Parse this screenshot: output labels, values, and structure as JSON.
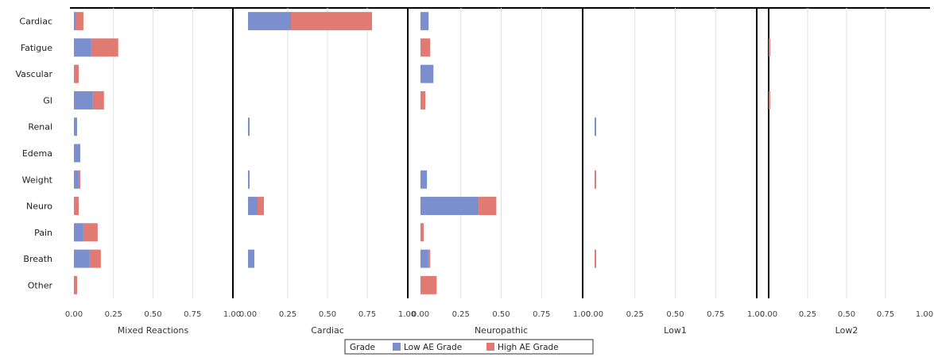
{
  "chart_data": {
    "type": "bar",
    "orientation": "horizontal",
    "stacked": true,
    "categories": [
      "Cardiac",
      "Fatigue",
      "Vascular",
      "GI",
      "Renal",
      "Edema",
      "Weight",
      "Neuro",
      "Pain",
      "Breath",
      "Other"
    ],
    "panels": [
      {
        "title": "Mixed Reactions",
        "xlim": [
          0,
          1
        ],
        "series": [
          {
            "name": "Low AE Grade",
            "values": [
              0.01,
              0.11,
              0.0,
              0.12,
              0.02,
              0.04,
              0.03,
              0.0,
              0.06,
              0.1,
              0.0
            ]
          },
          {
            "name": "High AE Grade",
            "values": [
              0.05,
              0.17,
              0.03,
              0.07,
              0.0,
              0.0,
              0.01,
              0.03,
              0.09,
              0.07,
              0.02
            ]
          }
        ]
      },
      {
        "title": "Cardiac",
        "xlim": [
          0,
          1
        ],
        "series": [
          {
            "name": "Low AE Grade",
            "values": [
              0.27,
              0,
              0,
              0,
              0.01,
              0,
              0.01,
              0.06,
              0,
              0.04,
              0
            ]
          },
          {
            "name": "High AE Grade",
            "values": [
              0.51,
              0,
              0,
              0,
              0.0,
              0,
              0.0,
              0.04,
              0,
              0.0,
              0
            ]
          }
        ]
      },
      {
        "title": "Neuropathic",
        "xlim": [
          0,
          1
        ],
        "series": [
          {
            "name": "Low AE Grade",
            "values": [
              0.05,
              0.0,
              0.08,
              0.0,
              0.0,
              0.0,
              0.04,
              0.36,
              0.0,
              0.05,
              0.0
            ]
          },
          {
            "name": "High AE Grade",
            "values": [
              0.0,
              0.06,
              0.0,
              0.03,
              0.0,
              0.0,
              0.0,
              0.11,
              0.02,
              0.01,
              0.1
            ]
          }
        ]
      },
      {
        "title": "Low1",
        "xlim": [
          0,
          1
        ],
        "series": [
          {
            "name": "Low AE Grade",
            "values": [
              0,
              0,
              0,
              0,
              0.01,
              0,
              0.0,
              0,
              0,
              0.0,
              0
            ]
          },
          {
            "name": "High AE Grade",
            "values": [
              0,
              0,
              0,
              0,
              0.0,
              0,
              0.01,
              0,
              0,
              0.01,
              0
            ]
          }
        ]
      },
      {
        "title": "Low2",
        "xlim": [
          0,
          1
        ],
        "series": [
          {
            "name": "Low AE Grade",
            "values": [
              0,
              0,
              0,
              0,
              0,
              0,
              0,
              0,
              0,
              0,
              0
            ]
          },
          {
            "name": "High AE Grade",
            "values": [
              0,
              0.01,
              0,
              0.01,
              0,
              0,
              0,
              0,
              0,
              0,
              0.0
            ]
          }
        ]
      }
    ],
    "xticks": [
      "0.00",
      "0.25",
      "0.50",
      "0.75",
      "1.00"
    ],
    "grid": true,
    "legend": {
      "title": "Grade",
      "placement": "bottom-center",
      "entries": [
        "Low AE Grade",
        "High AE Grade"
      ]
    },
    "colors": {
      "Low AE Grade": "#7b8fcf",
      "High AE Grade": "#e07a72"
    }
  }
}
